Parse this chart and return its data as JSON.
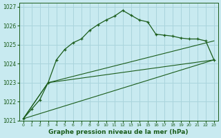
{
  "background_color": "#c8eaf0",
  "grid_color": "#aad4dc",
  "line_color": "#1a5c1a",
  "xlabel": "Graphe pression niveau de la mer (hPa)",
  "xlim": [
    -0.5,
    23.5
  ],
  "ylim": [
    1021,
    1027.2
  ],
  "yticks": [
    1021,
    1022,
    1023,
    1024,
    1025,
    1026,
    1027
  ],
  "xticks": [
    0,
    1,
    2,
    3,
    4,
    5,
    6,
    7,
    8,
    9,
    10,
    11,
    12,
    13,
    14,
    15,
    16,
    17,
    18,
    19,
    20,
    21,
    22,
    23
  ],
  "series1_x": [
    0,
    1,
    2,
    3,
    4,
    5,
    6,
    7,
    8,
    9,
    10,
    11,
    12,
    13,
    14,
    15,
    16,
    17,
    18,
    19,
    20,
    21,
    22,
    23
  ],
  "series1_y": [
    1021.1,
    1021.6,
    1022.1,
    1023.0,
    1024.2,
    1024.75,
    1025.1,
    1025.3,
    1025.75,
    1026.05,
    1026.3,
    1026.5,
    1026.8,
    1026.55,
    1026.3,
    1026.2,
    1025.55,
    1025.5,
    1025.45,
    1025.35,
    1025.3,
    1025.3,
    1025.2,
    1024.2
  ],
  "series2_x": [
    0,
    23
  ],
  "series2_y": [
    1021.1,
    1024.2
  ],
  "series3_x": [
    0,
    3,
    23
  ],
  "series3_y": [
    1021.1,
    1023.0,
    1024.2
  ],
  "series4_x": [
    0,
    3,
    23
  ],
  "series4_y": [
    1021.1,
    1023.0,
    1025.2
  ]
}
